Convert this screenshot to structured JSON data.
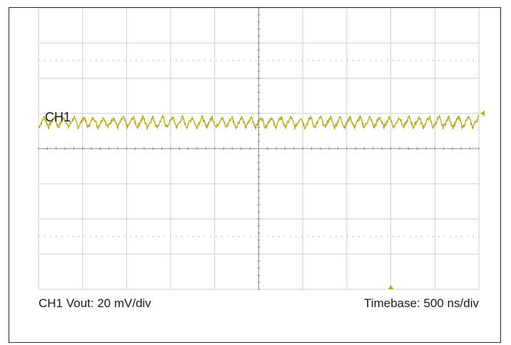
{
  "chart_data": {
    "type": "line",
    "title": "",
    "instrument": "oscilloscope",
    "grid": {
      "divisions_x": 10,
      "divisions_y": 8,
      "color": "#cfcfcf"
    },
    "channel": {
      "label": "CH1",
      "color": "#b7ad2a"
    },
    "settings": {
      "vertical": "CH1 Vout: 20 mV/div",
      "horizontal": "Timebase: 500 ns/div"
    },
    "axes": {
      "x": {
        "unit": "ns",
        "range": [
          0,
          5000
        ],
        "per_div": 500
      },
      "y": {
        "unit": "mV",
        "range": [
          -80,
          80
        ],
        "per_div": 20
      }
    },
    "series": [
      {
        "name": "CH1",
        "description": "ripple waveform",
        "offset_mv": 15,
        "ripple_pp_mv": 6,
        "ripple_period_ns": 112
      }
    ],
    "markers": {
      "trigger_level_mv": 20,
      "trigger_time_ns": 4000
    }
  }
}
